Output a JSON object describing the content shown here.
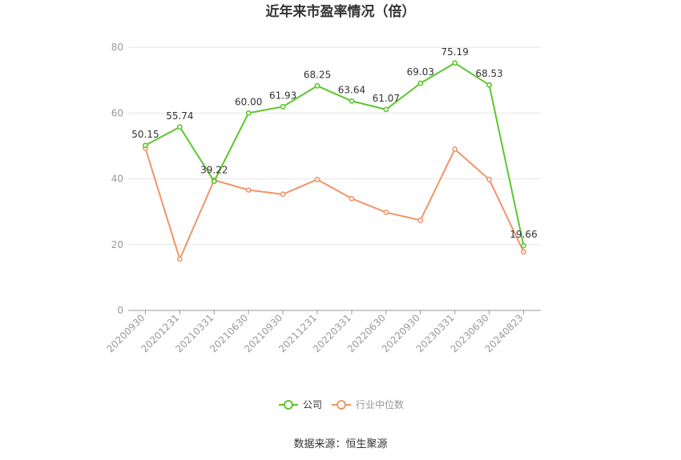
{
  "chart_data": {
    "type": "line",
    "title": "近年来市盈率情况（倍）",
    "categories": [
      "20200930",
      "20201231",
      "20210331",
      "20210630",
      "20210930",
      "20211231",
      "20220331",
      "20220630",
      "20220930",
      "20230331",
      "20230630",
      "20240823"
    ],
    "series": [
      {
        "name": "公司",
        "color": "#5cc72b",
        "values": [
          50.15,
          55.74,
          39.22,
          60.0,
          61.93,
          68.25,
          63.64,
          61.07,
          69.03,
          75.19,
          68.53,
          19.66
        ],
        "labels": [
          "50.15",
          "55.74",
          "39.22",
          "60.00",
          "61.93",
          "68.25",
          "63.64",
          "61.07",
          "69.03",
          "75.19",
          "68.53",
          "19.66"
        ]
      },
      {
        "name": "行业中位数",
        "color": "#f0956a",
        "values": [
          49.3,
          15.6,
          39.6,
          36.6,
          35.3,
          39.8,
          34.0,
          29.8,
          27.4,
          49.0,
          39.8,
          17.8
        ]
      }
    ],
    "ylim": [
      0,
      80
    ],
    "yticks": [
      0,
      20,
      40,
      60,
      80
    ],
    "grid": true,
    "legend_position": "bottom"
  },
  "source": "数据来源：恒生聚源"
}
